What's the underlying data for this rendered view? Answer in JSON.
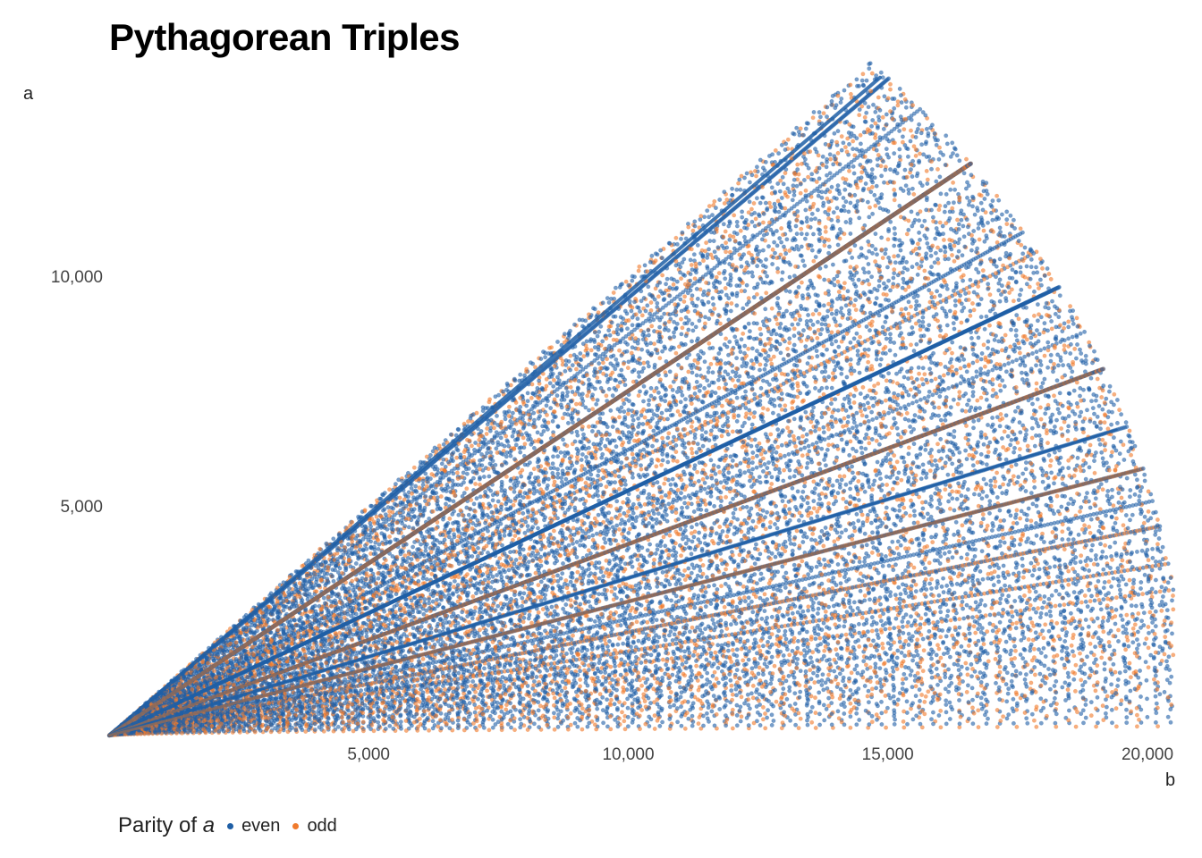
{
  "chart_data": {
    "type": "scatter",
    "title": "Pythagorean Triples",
    "xlabel": "b",
    "ylabel": "a",
    "xlim": [
      0,
      20500
    ],
    "ylim": [
      0,
      14200
    ],
    "x_ticks": [
      5000,
      10000,
      15000,
      20000
    ],
    "x_tick_labels": [
      "5,000",
      "10,000",
      "15,000",
      "20,000"
    ],
    "y_ticks": [
      5000,
      10000
    ],
    "y_tick_labels": [
      "5,000",
      "10,000"
    ],
    "grid": false,
    "legend": {
      "title_prefix": "Parity of ",
      "title_var": "a",
      "position": "bottom-left",
      "entries": [
        {
          "label": "even",
          "color": "#1f5fa6"
        },
        {
          "label": "odd",
          "color": "#f07a2c"
        }
      ]
    },
    "series": [
      {
        "name": "even",
        "color": "#1f5fa6"
      },
      {
        "name": "odd",
        "color": "#f07a2c"
      }
    ],
    "rays": [
      {
        "slope": 0.9643,
        "x_end": 14850,
        "series": "even"
      },
      {
        "slope": 0.75,
        "x_end": 16400,
        "series": "odd"
      },
      {
        "slope": 0.5333,
        "x_end": 18000,
        "series": "even"
      },
      {
        "slope": 0.4167,
        "x_end": 18900,
        "series": "odd"
      },
      {
        "slope": 0.3429,
        "x_end": 19400,
        "series": "even"
      },
      {
        "slope": 0.2917,
        "x_end": 19800,
        "series": "odd"
      }
    ],
    "max_c": 20750
  }
}
